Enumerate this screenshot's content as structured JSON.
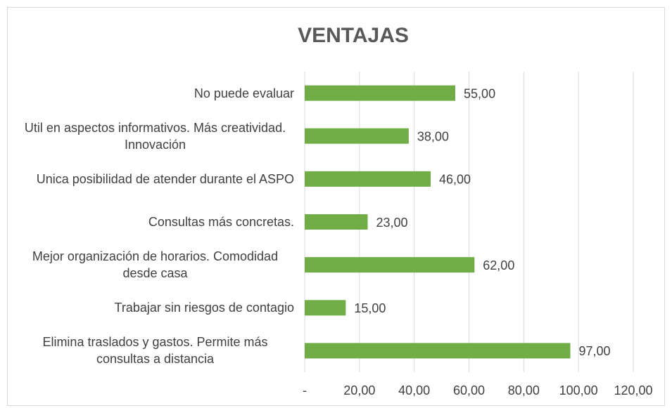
{
  "chart_data": {
    "type": "hbar",
    "title": "VENTAJAS",
    "categories": [
      "No puede evaluar",
      "Util en aspectos informativos. Más creatividad. Innovación",
      "Unica posibilidad de atender durante el ASPO",
      "Consultas más concretas.",
      "Mejor organización de horarios. Comodidad desde casa",
      "Trabajar sin riesgos de contagio",
      "Elimina traslados y gastos. Permite más consultas a distancia"
    ],
    "values": [
      55,
      38,
      46,
      23,
      62,
      15,
      97
    ],
    "value_labels": [
      "55,00",
      "38,00",
      "46,00",
      "23,00",
      "62,00",
      "15,00",
      "97,00"
    ],
    "color": "#70ad47",
    "xlim": [
      0,
      120
    ],
    "xticks": [
      {
        "value": 0,
        "label": "-"
      },
      {
        "value": 20,
        "label": "20,00"
      },
      {
        "value": 40,
        "label": "40,00"
      },
      {
        "value": 60,
        "label": "60,00"
      },
      {
        "value": 80,
        "label": "80,00"
      },
      {
        "value": 100,
        "label": "100,00"
      },
      {
        "value": 120,
        "label": "120,00"
      }
    ],
    "grid": true
  }
}
